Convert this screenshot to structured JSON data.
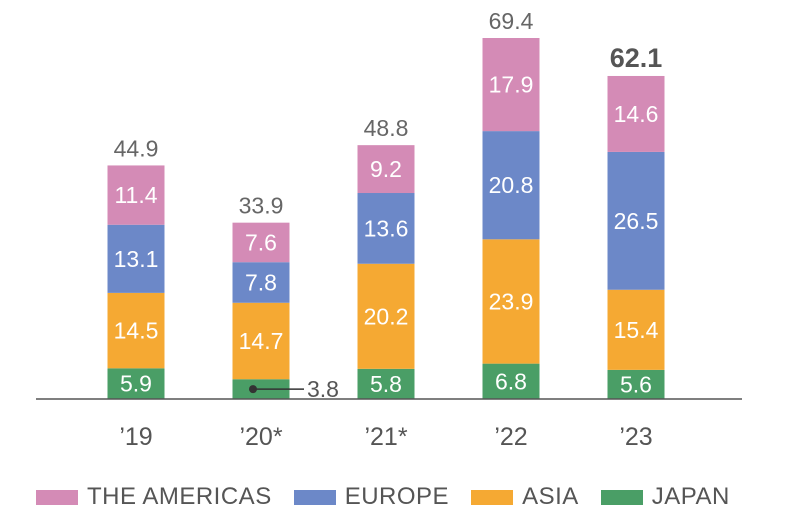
{
  "chart_data": {
    "type": "bar",
    "stacked": true,
    "categories": [
      "’19",
      "’20*",
      "’21*",
      "’22",
      "’23"
    ],
    "series": [
      {
        "name": "JAPAN",
        "color": "#4a9e66",
        "values": [
          5.9,
          3.8,
          5.8,
          6.8,
          5.6
        ]
      },
      {
        "name": "ASIA",
        "color": "#f5a933",
        "values": [
          14.5,
          14.7,
          20.2,
          23.9,
          15.4
        ]
      },
      {
        "name": "EUROPE",
        "color": "#6c88c8",
        "values": [
          13.1,
          7.8,
          13.6,
          20.8,
          26.5
        ]
      },
      {
        "name": "THE AMERICAS",
        "color": "#d48bb6",
        "values": [
          11.4,
          7.6,
          9.2,
          17.9,
          14.6
        ]
      }
    ],
    "totals": [
      "44.9",
      "33.9",
      "48.8",
      "69.4",
      "62.1"
    ],
    "highlight_total_index": 4,
    "segment_labels": [
      [
        "5.9",
        "3.8",
        "5.8",
        "6.8",
        "5.6"
      ],
      [
        "14.5",
        "14.7",
        "20.2",
        "23.9",
        "15.4"
      ],
      [
        "13.1",
        "7.8",
        "13.6",
        "20.8",
        "26.5"
      ],
      [
        "11.4",
        "7.6",
        "9.2",
        "17.9",
        "14.6"
      ]
    ],
    "callout": {
      "category_index": 1,
      "series_index": 0,
      "label": "3.8"
    },
    "legend": {
      "position": "bottom",
      "order": [
        "THE AMERICAS",
        "EUROPE",
        "ASIA",
        "JAPAN"
      ]
    },
    "title": "",
    "xlabel": "",
    "ylabel": "",
    "ylim": [
      0,
      72
    ],
    "grid": false
  }
}
